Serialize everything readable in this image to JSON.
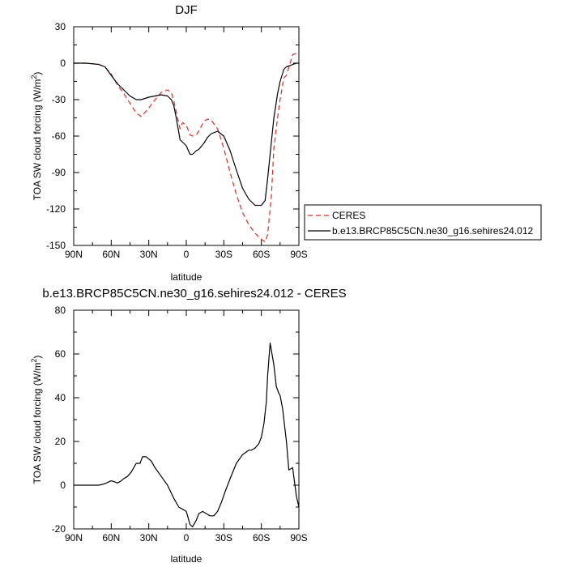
{
  "chart_data": [
    {
      "type": "line",
      "title": "DJF",
      "xlabel": "latitude",
      "ylabel": "TOA SW cloud forcing (W/m",
      "ylabel_sup": "2",
      "ylabel_close": ")",
      "xlim": [
        90,
        -90
      ],
      "ylim": [
        -150,
        30
      ],
      "x_ticks": [
        90,
        60,
        30,
        0,
        -30,
        -60,
        -90
      ],
      "x_tick_labels": [
        "90N",
        "60N",
        "30N",
        "0",
        "30S",
        "60S",
        "90S"
      ],
      "y_ticks": [
        30,
        0,
        -30,
        -60,
        -90,
        -120,
        -150
      ],
      "y_tick_labels": [
        "30",
        "0",
        "-30",
        "-60",
        "-90",
        "-120",
        "-150"
      ],
      "legend": [
        {
          "name": "CERES",
          "color": "#e8271e",
          "dash": "6,4"
        },
        {
          "name": "b.e13.BRCP85C5CN.ne30_g16.sehires24.012",
          "color": "#000000",
          "dash": ""
        }
      ],
      "series": [
        {
          "name": "CERES",
          "color": "#e8271e",
          "x": [
            90,
            80,
            70,
            65,
            60,
            55,
            50,
            45,
            40,
            36,
            30,
            25,
            20,
            15,
            12,
            10,
            8,
            5,
            3,
            0,
            -3,
            -5,
            -8,
            -10,
            -14,
            -17,
            -20,
            -25,
            -30,
            -35,
            -40,
            -45,
            -50,
            -55,
            -60,
            -63,
            -65,
            -68,
            -70,
            -73,
            -75,
            -78,
            -80,
            -83,
            -85,
            -88,
            -90
          ],
          "y": [
            0,
            0,
            -1,
            -3,
            -9,
            -18,
            -25,
            -33,
            -41,
            -44,
            -37,
            -30,
            -24,
            -22,
            -24,
            -31,
            -40,
            -54,
            -49,
            -51,
            -59,
            -60,
            -59,
            -56,
            -48,
            -46,
            -47,
            -54,
            -70,
            -90,
            -108,
            -123,
            -133,
            -140,
            -145,
            -147,
            -141,
            -110,
            -70,
            -45,
            -30,
            -12,
            -10,
            0,
            7,
            8,
            7
          ]
        },
        {
          "name": "b.e13.BRCP85C5CN.ne30_g16.sehires24.012",
          "color": "#000000",
          "x": [
            90,
            80,
            70,
            65,
            60,
            55,
            50,
            45,
            40,
            36,
            30,
            25,
            20,
            15,
            12,
            10,
            8,
            5,
            3,
            0,
            -3,
            -5,
            -8,
            -10,
            -14,
            -17,
            -20,
            -25,
            -30,
            -35,
            -40,
            -45,
            -50,
            -55,
            -60,
            -63,
            -65,
            -68,
            -70,
            -73,
            -75,
            -78,
            -80,
            -83,
            -85,
            -88,
            -90
          ],
          "y": [
            0,
            0,
            -1,
            -3,
            -10,
            -17,
            -22,
            -27,
            -30,
            -30,
            -28,
            -27,
            -26,
            -27,
            -30,
            -35,
            -45,
            -63,
            -65,
            -68,
            -75,
            -75,
            -72,
            -71,
            -66,
            -61,
            -58,
            -56,
            -60,
            -72,
            -88,
            -103,
            -112,
            -117,
            -117,
            -113,
            -95,
            -65,
            -45,
            -25,
            -15,
            -5,
            -3,
            -2,
            -1,
            0,
            0
          ]
        }
      ]
    },
    {
      "type": "line",
      "title": "b.e13.BRCP85C5CN.ne30_g16.sehires24.012 - CERES",
      "xlabel": "latitude",
      "ylabel": "TOA SW cloud forcing (W/m",
      "ylabel_sup": "2",
      "ylabel_close": ")",
      "xlim": [
        90,
        -90
      ],
      "ylim": [
        -20,
        80
      ],
      "x_ticks": [
        90,
        60,
        30,
        0,
        -30,
        -60,
        -90
      ],
      "x_tick_labels": [
        "90N",
        "60N",
        "30N",
        "0",
        "30S",
        "60S",
        "90S"
      ],
      "y_ticks": [
        80,
        60,
        40,
        20,
        0,
        -20
      ],
      "y_tick_labels": [
        "80",
        "60",
        "40",
        "20",
        "0",
        "-20"
      ],
      "series": [
        {
          "name": "b.e13.BRCP85C5CN.ne30_g16.sehires24.012 - CERES",
          "color": "#000000",
          "x": [
            90,
            80,
            70,
            66,
            64,
            60,
            57,
            55,
            52,
            50,
            47,
            44,
            42,
            40,
            37,
            35,
            32,
            28,
            25,
            20,
            15,
            10,
            6,
            3,
            0,
            -3,
            -5,
            -8,
            -10,
            -13,
            -16,
            -19,
            -22,
            -25,
            -28,
            -31,
            -35,
            -40,
            -45,
            -50,
            -52,
            -55,
            -58,
            -60,
            -62,
            -64,
            -65,
            -67,
            -70,
            -72,
            -74,
            -75,
            -77,
            -80,
            -82,
            -85,
            -88,
            -90
          ],
          "y": [
            0,
            0,
            0,
            0.5,
            1,
            2,
            1.5,
            1,
            2,
            3,
            4,
            6,
            8,
            10,
            10,
            13,
            13,
            11,
            8,
            4,
            0,
            -6,
            -10,
            -11,
            -12,
            -18,
            -19,
            -16,
            -13,
            -12,
            -13,
            -14,
            -14,
            -12,
            -8,
            -3,
            3,
            10,
            14,
            16,
            16,
            17,
            19,
            22,
            28,
            38,
            50,
            65,
            55,
            45,
            42,
            41,
            35,
            20,
            7,
            8,
            -5,
            -10
          ]
        }
      ]
    }
  ]
}
